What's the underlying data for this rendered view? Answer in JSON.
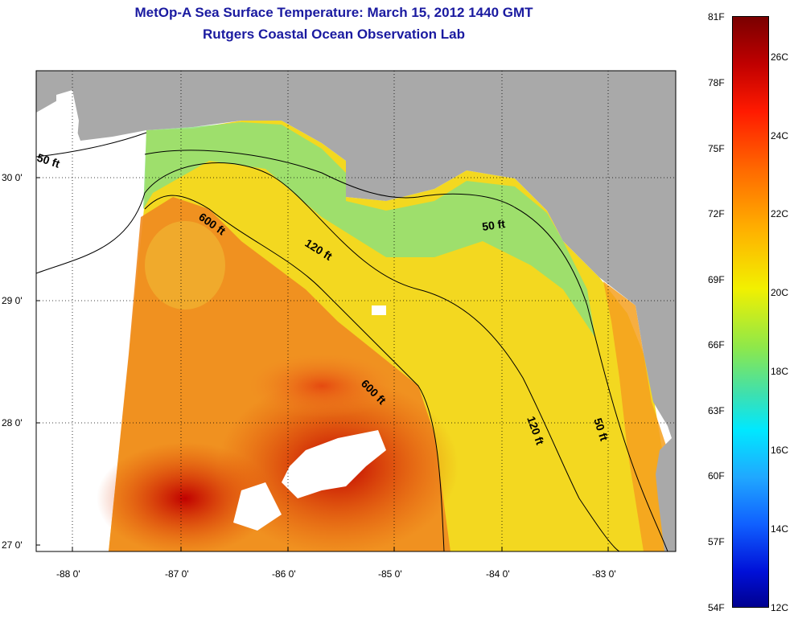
{
  "title": {
    "line1": "MetOp-A Sea Surface Temperature:  March 15, 2012 1440 GMT",
    "line2": "Rutgers Coastal Ocean Observation Lab"
  },
  "axes": {
    "lat_ticks": [
      "30 0'",
      "29 0'",
      "28 0'",
      "27 0'"
    ],
    "lon_ticks": [
      "-88 0'",
      "-87 0'",
      "-86 0'",
      "-85 0'",
      "-84 0'",
      "-83 0'"
    ]
  },
  "contours": {
    "c50_west": "50 ft",
    "c600_north": "600 ft",
    "c120_north": "120 ft",
    "c50_east": "50 ft",
    "c600_south": "600 ft",
    "c120_south": "120 ft",
    "c50_south": "50 ft"
  },
  "colorbar": {
    "fahrenheit": [
      "81F",
      "78F",
      "75F",
      "72F",
      "69F",
      "66F",
      "63F",
      "60F",
      "57F",
      "54F"
    ],
    "celsius": [
      "26C",
      "24C",
      "22C",
      "20C",
      "18C",
      "16C",
      "14C",
      "12C"
    ]
  },
  "colors": {
    "land": "#a9a9a9",
    "no_data": "#ffffff",
    "title": "#1a1aa0",
    "warm": "#c80000",
    "cool": "#7fe07a"
  }
}
